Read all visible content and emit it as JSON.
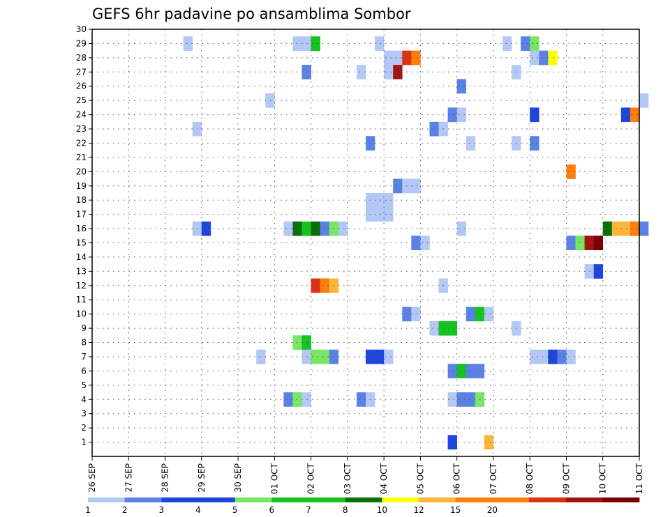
{
  "chart_data": {
    "type": "heatmap",
    "title": "GEFS 6hr padavine po ansamblima Sombor",
    "xlabel": "",
    "ylabel": "",
    "x_tick_labels": [
      "26 SEP",
      "27 SEP",
      "28 SEP",
      "29 SEP",
      "30 SEP",
      "01 OCT",
      "02 OCT",
      "03 OCT",
      "04 OCT",
      "05 OCT",
      "06 OCT",
      "07 OCT",
      "08 OCT",
      "09 OCT",
      "10 OCT",
      "11 OCT"
    ],
    "x_range_days": [
      0,
      15
    ],
    "y_tick_labels": [
      "1",
      "2",
      "3",
      "4",
      "5",
      "6",
      "7",
      "8",
      "9",
      "10",
      "11",
      "12",
      "13",
      "14",
      "15",
      "16",
      "17",
      "18",
      "19",
      "20",
      "21",
      "22",
      "23",
      "24",
      "25",
      "26",
      "27",
      "28",
      "29",
      "30"
    ],
    "y_range": [
      0,
      30
    ],
    "grid": true,
    "time_step_hours": 6,
    "colorbar": {
      "labels": [
        "1",
        "2",
        "3",
        "4",
        "5",
        "6",
        "7",
        "8",
        "10",
        "12",
        "15",
        "20"
      ],
      "colors": [
        "#b4c8f5",
        "#5a82e6",
        "#1e46dc",
        "#1e46dc",
        "#78e664",
        "#14c31e",
        "#14c31e",
        "#0a6e0a",
        "#ffff00",
        "#ffb43c",
        "#ff7d0a",
        "#ff7d0a",
        "#dc3214",
        "#a01414",
        "#780000"
      ]
    },
    "cells_legend": "each cell: [member, day_offset_from_26_SEP, color_index]",
    "cells": [
      [
        29,
        2.5,
        0
      ],
      [
        29,
        5.5,
        0
      ],
      [
        29,
        5.75,
        0
      ],
      [
        29,
        6.0,
        6
      ],
      [
        29,
        7.75,
        0
      ],
      [
        29,
        11.25,
        0
      ],
      [
        29,
        11.75,
        1
      ],
      [
        29,
        12.0,
        4
      ],
      [
        28,
        8.0,
        0
      ],
      [
        28,
        8.25,
        0
      ],
      [
        28,
        8.5,
        12
      ],
      [
        28,
        8.75,
        10
      ],
      [
        28,
        12.0,
        0
      ],
      [
        28,
        12.25,
        1
      ],
      [
        28,
        12.5,
        8
      ],
      [
        27,
        5.75,
        1
      ],
      [
        27,
        7.25,
        0
      ],
      [
        27,
        8.0,
        0
      ],
      [
        27,
        8.25,
        13
      ],
      [
        27,
        11.5,
        0
      ],
      [
        26,
        10.0,
        1
      ],
      [
        25,
        4.75,
        0
      ],
      [
        25,
        15.0,
        0
      ],
      [
        24,
        9.75,
        1
      ],
      [
        24,
        10.0,
        0
      ],
      [
        24,
        12.0,
        2
      ],
      [
        24,
        14.5,
        2
      ],
      [
        24,
        14.75,
        10
      ],
      [
        23,
        2.75,
        0
      ],
      [
        23,
        9.25,
        1
      ],
      [
        23,
        9.5,
        0
      ],
      [
        22,
        7.5,
        1
      ],
      [
        22,
        10.25,
        0
      ],
      [
        22,
        11.5,
        0
      ],
      [
        22,
        12.0,
        1
      ],
      [
        20,
        13.0,
        10
      ],
      [
        19,
        8.25,
        1
      ],
      [
        19,
        8.5,
        0
      ],
      [
        19,
        8.75,
        0
      ],
      [
        18,
        7.5,
        0
      ],
      [
        18,
        7.75,
        0
      ],
      [
        18,
        8.0,
        0
      ],
      [
        17,
        7.5,
        0
      ],
      [
        17,
        7.75,
        0
      ],
      [
        17,
        8.0,
        0
      ],
      [
        16,
        2.75,
        0
      ],
      [
        16,
        3.0,
        2
      ],
      [
        16,
        5.25,
        0
      ],
      [
        16,
        5.5,
        7
      ],
      [
        16,
        5.75,
        5
      ],
      [
        16,
        6.0,
        7
      ],
      [
        16,
        6.25,
        1
      ],
      [
        16,
        6.5,
        4
      ],
      [
        16,
        6.75,
        0
      ],
      [
        16,
        10.0,
        0
      ],
      [
        16,
        14.0,
        7
      ],
      [
        16,
        14.25,
        9
      ],
      [
        16,
        14.5,
        9
      ],
      [
        16,
        14.75,
        10
      ],
      [
        16,
        15.0,
        1
      ],
      [
        15,
        8.75,
        1
      ],
      [
        15,
        9.0,
        0
      ],
      [
        15,
        13.0,
        1
      ],
      [
        15,
        13.25,
        4
      ],
      [
        15,
        13.5,
        13
      ],
      [
        15,
        13.75,
        14
      ],
      [
        13,
        13.5,
        0
      ],
      [
        13,
        13.75,
        2
      ],
      [
        12,
        6.0,
        12
      ],
      [
        12,
        6.25,
        10
      ],
      [
        12,
        6.5,
        9
      ],
      [
        12,
        9.5,
        0
      ],
      [
        10,
        8.5,
        1
      ],
      [
        10,
        8.75,
        0
      ],
      [
        10,
        10.25,
        1
      ],
      [
        10,
        10.5,
        5
      ],
      [
        10,
        10.75,
        0
      ],
      [
        9,
        9.25,
        0
      ],
      [
        9,
        9.5,
        5
      ],
      [
        9,
        9.75,
        5
      ],
      [
        9,
        11.5,
        0
      ],
      [
        8,
        5.5,
        4
      ],
      [
        8,
        5.75,
        5
      ],
      [
        7,
        4.5,
        0
      ],
      [
        7,
        5.75,
        0
      ],
      [
        7,
        6.0,
        4
      ],
      [
        7,
        6.25,
        4
      ],
      [
        7,
        6.5,
        1
      ],
      [
        7,
        7.5,
        2
      ],
      [
        7,
        7.75,
        2
      ],
      [
        7,
        8.0,
        0
      ],
      [
        7,
        12.0,
        0
      ],
      [
        7,
        12.25,
        0
      ],
      [
        7,
        12.5,
        2
      ],
      [
        7,
        12.75,
        1
      ],
      [
        7,
        13.0,
        0
      ],
      [
        6,
        9.75,
        1
      ],
      [
        6,
        10.0,
        5
      ],
      [
        6,
        10.25,
        1
      ],
      [
        6,
        10.5,
        1
      ],
      [
        4,
        5.25,
        1
      ],
      [
        4,
        5.5,
        4
      ],
      [
        4,
        5.75,
        0
      ],
      [
        4,
        7.25,
        1
      ],
      [
        4,
        7.5,
        0
      ],
      [
        4,
        9.75,
        0
      ],
      [
        4,
        10.0,
        1
      ],
      [
        4,
        10.25,
        1
      ],
      [
        4,
        10.5,
        4
      ],
      [
        1,
        9.75,
        2
      ],
      [
        1,
        10.75,
        9
      ]
    ]
  }
}
